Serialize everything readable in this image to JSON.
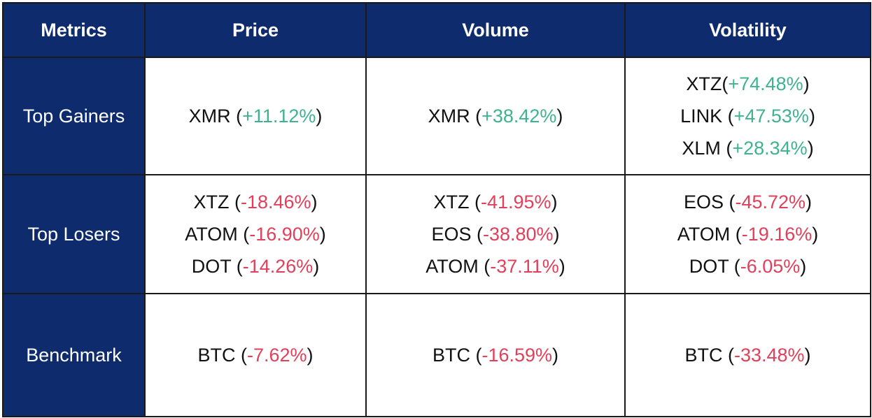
{
  "headers": [
    "Metrics",
    "Price",
    "Volume",
    "Volatility"
  ],
  "colors": {
    "header_bg": "#0e2b6e",
    "positive": "#3fb38f",
    "negative": "#e0405a"
  },
  "rows": [
    {
      "label": "Top Gainers",
      "cells": [
        [
          {
            "coin": "XMR",
            "sep": " (",
            "change": "+11.12%",
            "close": ")"
          }
        ],
        [
          {
            "coin": "XMR",
            "sep": " (",
            "change": "+38.42%",
            "close": ")"
          }
        ],
        [
          {
            "coin": "XTZ",
            "sep": "(",
            "change": "+74.48%",
            "close": ")"
          },
          {
            "coin": "LINK",
            "sep": " (",
            "change": "+47.53%",
            "close": ")"
          },
          {
            "coin": "XLM",
            "sep": " (",
            "change": "+28.34%",
            "close": ")"
          }
        ]
      ]
    },
    {
      "label": "Top Losers",
      "cells": [
        [
          {
            "coin": "XTZ",
            "sep": " (",
            "change": "-18.46%",
            "close": ")"
          },
          {
            "coin": "ATOM",
            "sep": " (",
            "change": "-16.90%",
            "close": ")"
          },
          {
            "coin": "DOT",
            "sep": " (",
            "change": "-14.26%",
            "close": ")"
          }
        ],
        [
          {
            "coin": "XTZ",
            "sep": " (",
            "change": "-41.95%",
            "close": ")"
          },
          {
            "coin": "EOS",
            "sep": " (",
            "change": "-38.80%",
            "close": ")"
          },
          {
            "coin": "ATOM",
            "sep": " (",
            "change": "-37.11%",
            "close": ")"
          }
        ],
        [
          {
            "coin": "EOS",
            "sep": " (",
            "change": "-45.72%",
            "close": ")"
          },
          {
            "coin": "ATOM",
            "sep": " (",
            "change": "-19.16%",
            "close": ")"
          },
          {
            "coin": "DOT",
            "sep": " (",
            "change": "-6.05%",
            "close": ")"
          }
        ]
      ]
    },
    {
      "label": "Benchmark",
      "cells": [
        [
          {
            "coin": "BTC",
            "sep": " (",
            "change": "-7.62%",
            "close": ")"
          }
        ],
        [
          {
            "coin": "BTC",
            "sep": " (",
            "change": "-16.59%",
            "close": ")"
          }
        ],
        [
          {
            "coin": "BTC",
            "sep": " (",
            "change": "-33.48%",
            "close": ")"
          }
        ]
      ]
    }
  ]
}
